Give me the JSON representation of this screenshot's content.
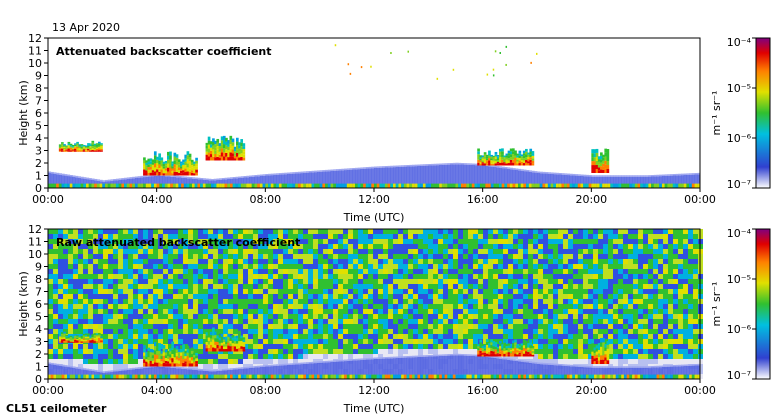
{
  "figure": {
    "date": "13 Apr 2020",
    "instrument": "CL51 ceilometer"
  },
  "chart_data": [
    {
      "type": "heatmap",
      "title": "Attenuated backscatter coefficient",
      "xlabel": "Time (UTC)",
      "ylabel": "Height (km)",
      "x_ticks": [
        "00:00",
        "04:00",
        "08:00",
        "12:00",
        "16:00",
        "20:00",
        "00:00"
      ],
      "y_ticks": [
        "0",
        "1",
        "2",
        "3",
        "4",
        "5",
        "6",
        "7",
        "8",
        "9",
        "10",
        "11",
        "12"
      ],
      "xlim_hours": [
        0,
        24
      ],
      "ylim_km": [
        0,
        12
      ],
      "colorbar": {
        "label": "m⁻¹ sr⁻¹",
        "scale": "log",
        "ticks": [
          "10⁻⁷",
          "10⁻⁶",
          "10⁻⁵",
          "10⁻⁴"
        ],
        "range": [
          1e-07,
          0.0001
        ],
        "colors": [
          "#ffffff",
          "#3040d0",
          "#00c0e0",
          "#30c030",
          "#e0e000",
          "#ff8000",
          "#e00000",
          "#800080"
        ]
      },
      "background": "clean",
      "cloud_layers_km": [
        {
          "start_h": 0.4,
          "end_h": 2.0,
          "bottom": 2.9,
          "top": 3.8
        },
        {
          "start_h": 3.5,
          "end_h": 5.5,
          "bottom": 1.0,
          "top": 3.0
        },
        {
          "start_h": 5.8,
          "end_h": 7.2,
          "bottom": 2.2,
          "top": 4.2
        },
        {
          "start_h": 15.8,
          "end_h": 17.8,
          "bottom": 1.8,
          "top": 3.2
        },
        {
          "start_h": 20.0,
          "end_h": 20.6,
          "bottom": 1.2,
          "top": 3.5
        }
      ],
      "boundary_layer_top_km": [
        [
          0,
          1.2
        ],
        [
          2,
          0.5
        ],
        [
          4,
          1.0
        ],
        [
          6,
          0.6
        ],
        [
          8,
          1.0
        ],
        [
          12,
          1.6
        ],
        [
          15,
          1.9
        ],
        [
          16,
          1.8
        ],
        [
          18,
          1.2
        ],
        [
          20,
          0.9
        ],
        [
          22,
          0.9
        ],
        [
          24,
          1.1
        ]
      ]
    },
    {
      "type": "heatmap",
      "title": "Raw attenuated backscatter coefficient",
      "xlabel": "Time (UTC)",
      "ylabel": "Height (km)",
      "x_ticks": [
        "00:00",
        "04:00",
        "08:00",
        "12:00",
        "16:00",
        "20:00",
        "00:00"
      ],
      "y_ticks": [
        "0",
        "1",
        "2",
        "3",
        "4",
        "5",
        "6",
        "7",
        "8",
        "9",
        "10",
        "11",
        "12"
      ],
      "xlim_hours": [
        0,
        24
      ],
      "ylim_km": [
        0,
        12
      ],
      "colorbar": {
        "label": "m⁻¹ sr⁻¹",
        "scale": "log",
        "ticks": [
          "10⁻⁷",
          "10⁻⁶",
          "10⁻⁵",
          "10⁻⁴"
        ],
        "range": [
          1e-07,
          0.0001
        ],
        "colors": [
          "#ffffff",
          "#3040d0",
          "#00c0e0",
          "#30c030",
          "#e0e000",
          "#ff8000",
          "#e00000",
          "#800080"
        ]
      },
      "background": "noisy",
      "cloud_layers_km": [
        {
          "start_h": 0.4,
          "end_h": 2.0,
          "bottom": 2.9,
          "top": 3.8
        },
        {
          "start_h": 3.5,
          "end_h": 5.5,
          "bottom": 1.0,
          "top": 3.0
        },
        {
          "start_h": 5.8,
          "end_h": 7.2,
          "bottom": 2.2,
          "top": 4.2
        },
        {
          "start_h": 15.8,
          "end_h": 17.8,
          "bottom": 1.8,
          "top": 3.2
        },
        {
          "start_h": 20.0,
          "end_h": 20.6,
          "bottom": 1.2,
          "top": 3.5
        }
      ],
      "boundary_layer_top_km": [
        [
          0,
          1.2
        ],
        [
          2,
          0.5
        ],
        [
          4,
          1.0
        ],
        [
          6,
          0.6
        ],
        [
          8,
          1.0
        ],
        [
          12,
          1.6
        ],
        [
          15,
          1.9
        ],
        [
          16,
          1.8
        ],
        [
          18,
          1.2
        ],
        [
          20,
          0.9
        ],
        [
          22,
          0.9
        ],
        [
          24,
          1.1
        ]
      ]
    }
  ]
}
